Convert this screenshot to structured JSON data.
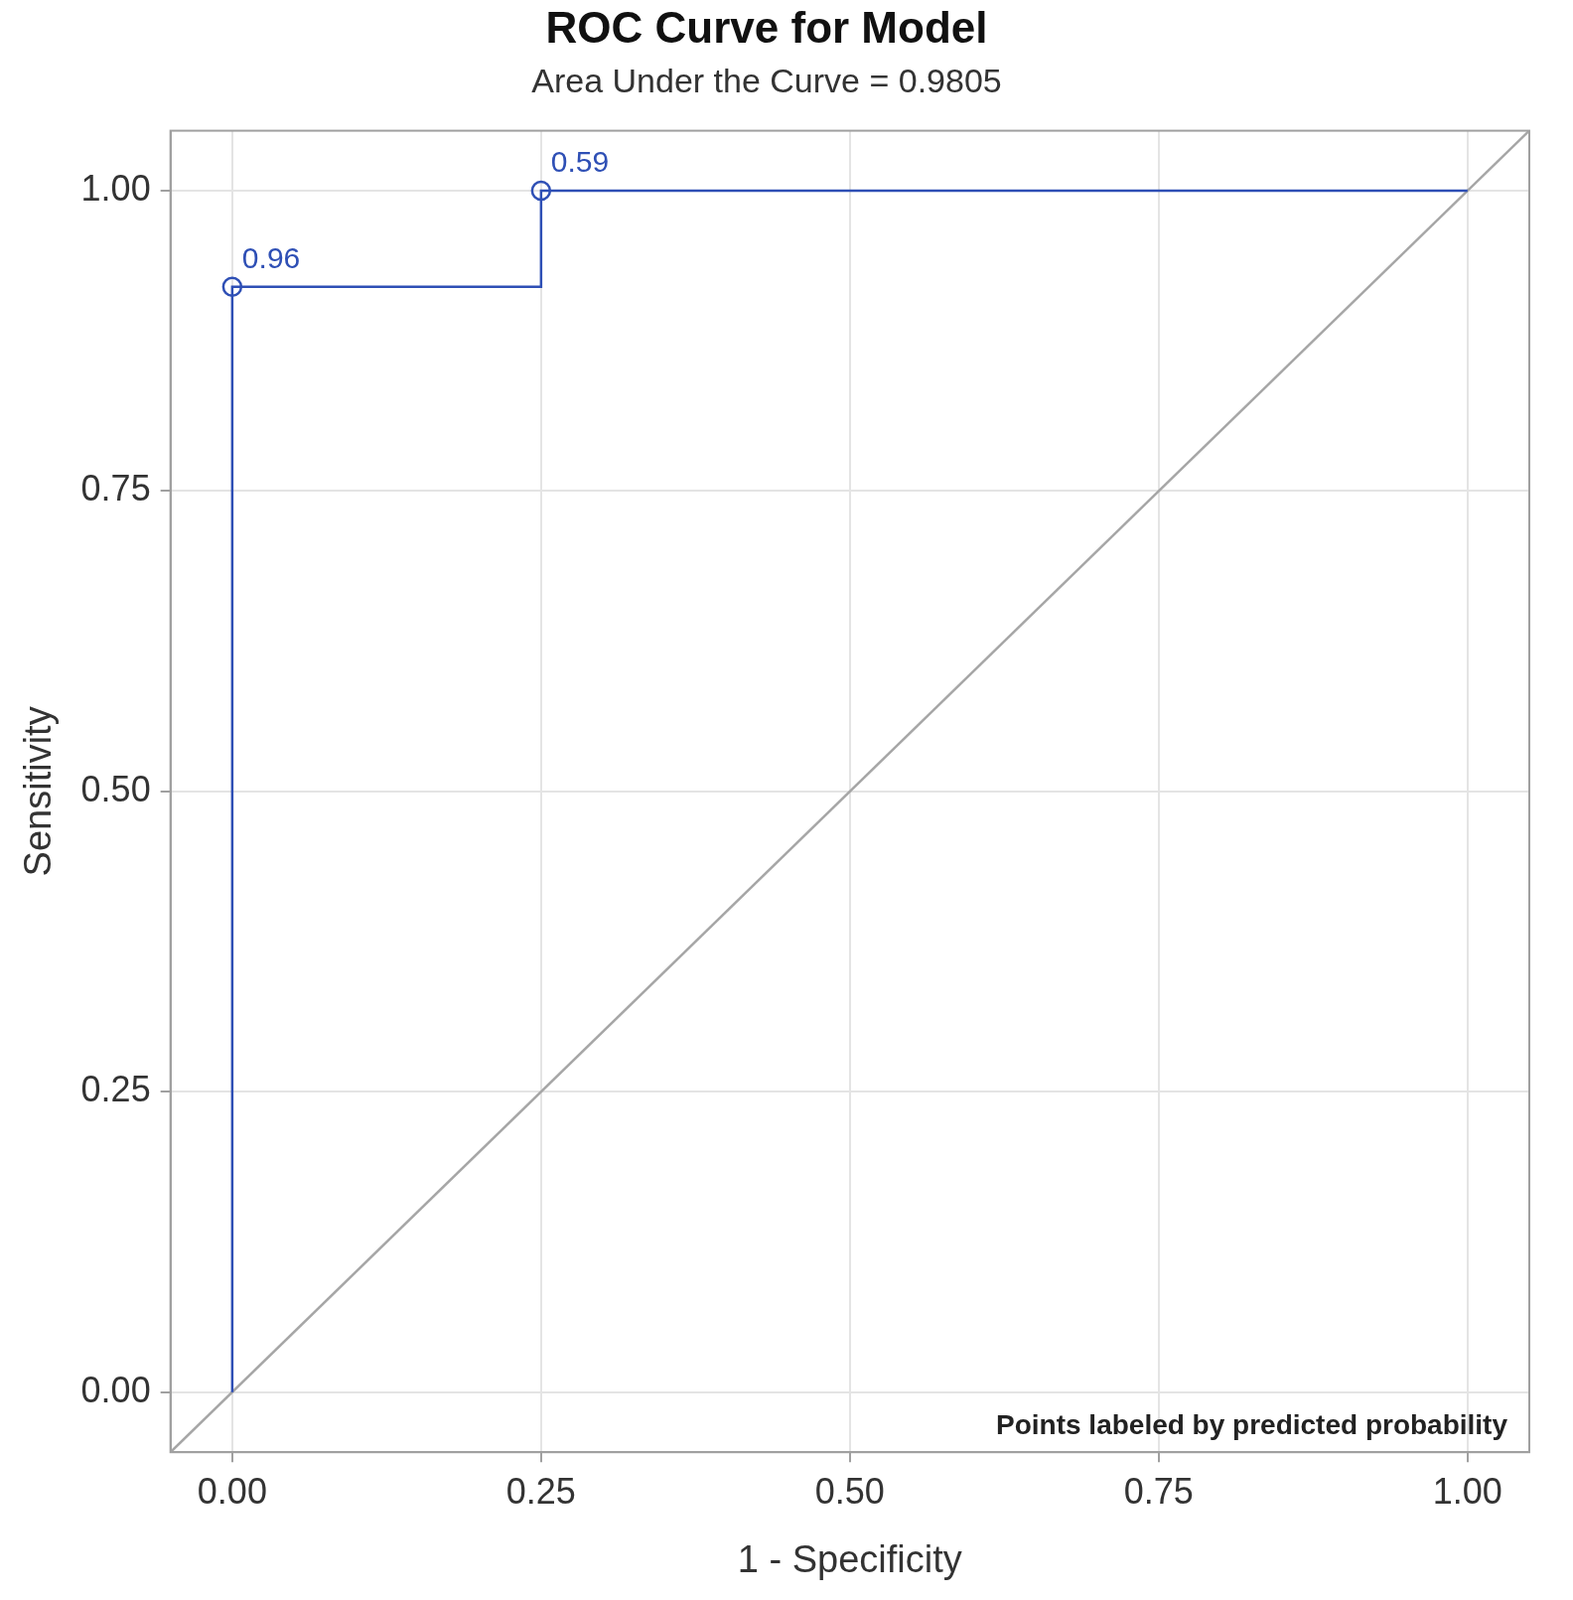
{
  "chart_data": {
    "type": "line",
    "title": "ROC Curve for Model",
    "subtitle": "Area Under the Curve = 0.9805",
    "x_label": "1 - Specificity",
    "y_label": "Sensitivity",
    "note": "Points labeled by predicted probability",
    "series": [
      {
        "color": "#2e4fb5",
        "x": [
          0,
          0,
          0.25,
          0.25,
          1
        ],
        "values": [
          0,
          0.92,
          0.92,
          1,
          1
        ],
        "line_style": "solid",
        "marker": "none"
      },
      {
        "color": "#a6a6a6",
        "x": [
          -0.05,
          1.05
        ],
        "values": [
          -0.05,
          1.05
        ],
        "line_style": "solid",
        "marker": "none"
      }
    ],
    "point_labels": {
      "x": [
        0,
        0.25
      ],
      "values": [
        0.92,
        1
      ],
      "labels": [
        "0.96",
        "0.59"
      ],
      "marker": "circle",
      "color": "#2e4fb5"
    },
    "xlim": [
      -0.05,
      1.05
    ],
    "ylim": [
      -0.05,
      1.05
    ],
    "xticks": [
      {
        "value": 0,
        "label": "0.00"
      },
      {
        "value": 0.25,
        "label": "0.25"
      },
      {
        "value": 0.5,
        "label": "0.50"
      },
      {
        "value": 0.75,
        "label": "0.75"
      },
      {
        "value": 1,
        "label": "1.00"
      }
    ],
    "yticks": [
      {
        "value": 0,
        "label": "0.00"
      },
      {
        "value": 0.25,
        "label": "0.25"
      },
      {
        "value": 0.5,
        "label": "0.50"
      },
      {
        "value": 0.75,
        "label": "0.75"
      },
      {
        "value": 1,
        "label": "1.00"
      }
    ],
    "grid": true
  }
}
